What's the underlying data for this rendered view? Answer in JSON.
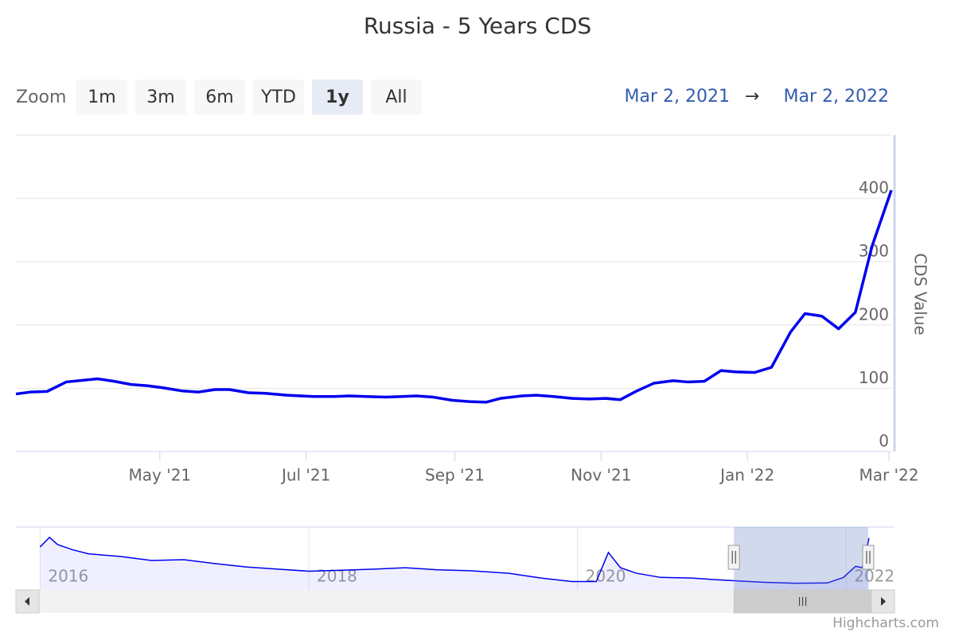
{
  "chart_data": {
    "type": "line",
    "title": "Russia - 5 Years CDS",
    "zoom_label": "Zoom",
    "buttons": [
      "1m",
      "3m",
      "6m",
      "YTD",
      "1y",
      "All"
    ],
    "selected_button": "1y",
    "range_from": "Mar 2, 2021",
    "range_arrow": "→",
    "range_to": "Mar 2, 2022",
    "y_axis_label": "CDS Value",
    "credit": "Highcharts.com",
    "color": "#0000ee",
    "grid": true,
    "x": [
      "2021-03-02",
      "2021-03-08",
      "2021-03-15",
      "2021-03-23",
      "2021-04-05",
      "2021-04-12",
      "2021-04-19",
      "2021-04-26",
      "2021-05-02",
      "2021-05-10",
      "2021-05-17",
      "2021-05-24",
      "2021-05-30",
      "2021-06-07",
      "2021-06-14",
      "2021-06-23",
      "2021-07-04",
      "2021-07-13",
      "2021-07-19",
      "2021-07-26",
      "2021-08-03",
      "2021-08-10",
      "2021-08-16",
      "2021-08-23",
      "2021-08-31",
      "2021-09-07",
      "2021-09-14",
      "2021-09-20",
      "2021-09-29",
      "2021-10-05",
      "2021-10-12",
      "2021-10-20",
      "2021-10-27",
      "2021-11-03",
      "2021-11-09",
      "2021-11-16",
      "2021-11-23",
      "2021-12-01",
      "2021-12-07",
      "2021-12-14",
      "2021-12-21",
      "2021-12-27",
      "2022-01-04",
      "2022-01-11",
      "2022-01-19",
      "2022-01-25",
      "2022-02-01",
      "2022-02-08",
      "2022-02-15",
      "2022-02-22",
      "2022-03-02"
    ],
    "values": [
      91,
      94,
      95,
      110,
      115,
      111,
      106,
      104,
      101,
      96,
      94,
      98,
      98,
      93,
      92,
      89,
      87,
      87,
      88,
      87,
      86,
      87,
      88,
      86,
      81,
      79,
      78,
      84,
      88,
      89,
      87,
      84,
      83,
      84,
      82,
      96,
      108,
      112,
      110,
      111,
      128,
      126,
      125,
      133,
      189,
      218,
      214,
      194,
      220,
      325,
      413
    ],
    "xlim": [
      "2021-03-02",
      "2022-03-02"
    ],
    "xticks": [
      {
        "value": "2021-05-01",
        "label": "May '21"
      },
      {
        "value": "2021-07-01",
        "label": "Jul '21"
      },
      {
        "value": "2021-09-01",
        "label": "Sep '21"
      },
      {
        "value": "2021-11-01",
        "label": "Nov '21"
      },
      {
        "value": "2022-01-01",
        "label": "Jan '22"
      },
      {
        "value": "2022-03-01",
        "label": "Mar '22"
      }
    ],
    "ylim": [
      0,
      500
    ],
    "yticks": [
      0,
      100,
      200,
      300,
      400
    ],
    "navigator": {
      "x": [
        2016.0,
        2016.07,
        2016.13,
        2016.24,
        2016.36,
        2016.6,
        2016.83,
        2017.07,
        2017.3,
        2017.54,
        2017.78,
        2018.0,
        2018.25,
        2018.49,
        2018.72,
        2018.96,
        2019.2,
        2019.49,
        2019.73,
        2019.96,
        2020.14,
        2020.23,
        2020.32,
        2020.44,
        2020.62,
        2020.85,
        2021.09,
        2021.38,
        2021.62,
        2021.86,
        2021.98,
        2022.07,
        2022.12,
        2022.17
      ],
      "values": [
        350,
        419,
        367,
        330,
        300,
        281,
        252,
        258,
        230,
        205,
        189,
        175,
        182,
        190,
        200,
        185,
        178,
        160,
        125,
        100,
        100,
        310,
        200,
        160,
        130,
        125,
        110,
        95,
        88,
        90,
        130,
        210,
        200,
        413
      ],
      "xlim": [
        2015.82,
        2022.36
      ],
      "ylim": [
        40,
        493
      ],
      "xticks": [
        2016,
        2018,
        2020,
        2022
      ]
    }
  }
}
